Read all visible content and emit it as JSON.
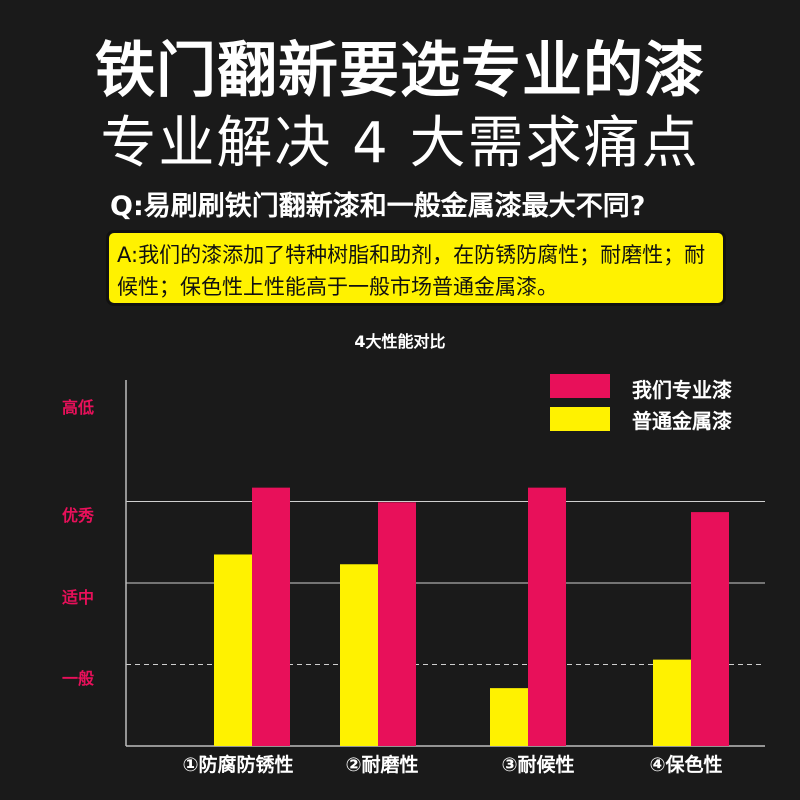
{
  "header": {
    "title": "铁门翻新要选专业的漆",
    "subtitle": "专业解决 4 大需求痛点"
  },
  "qa": {
    "question": "Q:易刷刷铁门翻新漆和一般金属漆最大不同?",
    "answer": "A:我们的漆添加了特种树脂和助剂，在防锈防腐性；耐磨性；耐候性；保色性上性能高于一般市场普通金属漆。"
  },
  "colors": {
    "background": "#1a1a1a",
    "accent_yellow": "#fff200",
    "series_ours": "#e8105a",
    "series_normal": "#fff200",
    "label_red": "#e8105a"
  },
  "chart_data": {
    "type": "bar",
    "title": "4大性能对比",
    "categories": [
      "①防腐防锈性",
      "②耐磨性",
      "③耐候性",
      "④保色性"
    ],
    "y_levels": [
      "一般",
      "适中",
      "优秀",
      "高低"
    ],
    "ylim": [
      0,
      4.4
    ],
    "series": [
      {
        "name": "普通金属漆",
        "values": [
          2.35,
          2.23,
          0.71,
          1.06
        ]
      },
      {
        "name": "我们专业漆",
        "values": [
          3.17,
          2.99,
          3.17,
          2.87
        ]
      }
    ],
    "legend": "top-right",
    "grid": true
  }
}
